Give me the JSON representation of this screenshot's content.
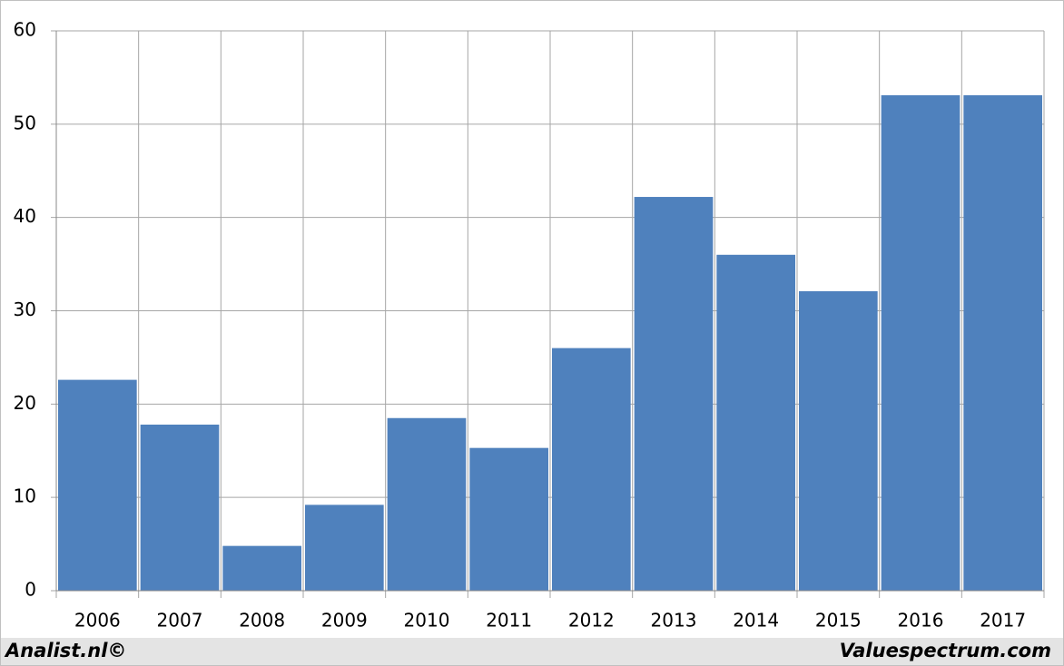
{
  "chart_data": {
    "type": "bar",
    "categories": [
      "2006",
      "2007",
      "2008",
      "2009",
      "2010",
      "2011",
      "2012",
      "2013",
      "2014",
      "2015",
      "2016",
      "2017"
    ],
    "values": [
      22.6,
      17.8,
      4.8,
      9.2,
      18.5,
      15.3,
      26,
      42.2,
      36,
      32.1,
      53.1,
      53.1
    ],
    "color": "#4f81bd",
    "ylim": [
      0,
      60
    ],
    "yticks": [
      0,
      10,
      20,
      30,
      40,
      50,
      60
    ],
    "grid": true,
    "annotations": [
      "Analist.nl©",
      "Valuespectrum.com"
    ]
  }
}
